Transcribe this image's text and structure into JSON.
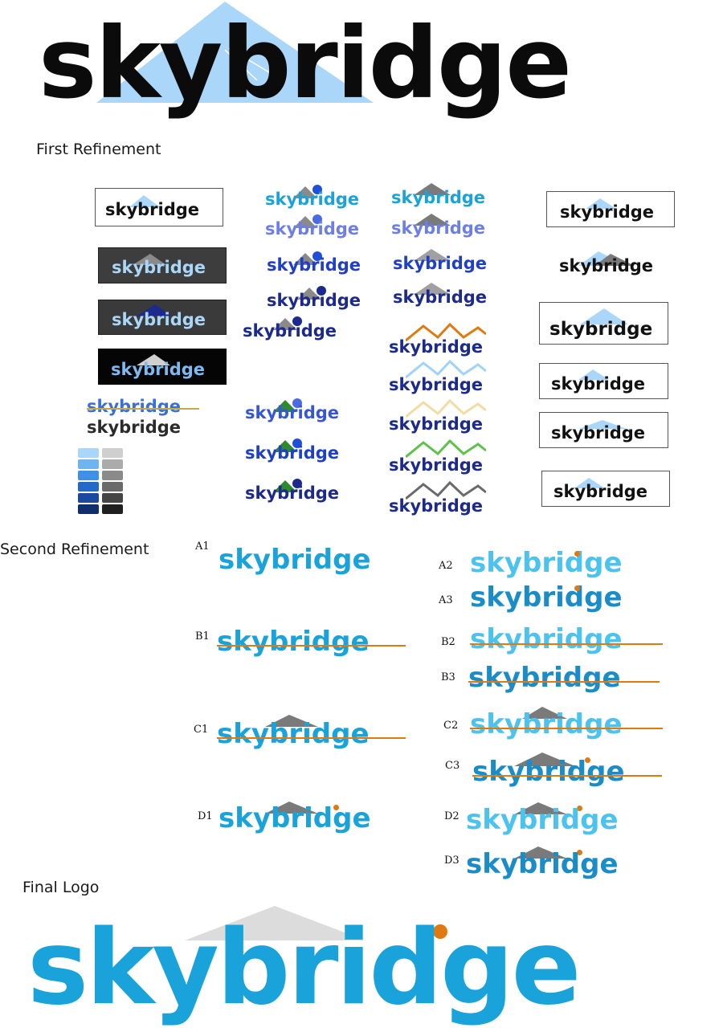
{
  "headings": {
    "first": "First Refinement",
    "second": "Second Refinement",
    "final": "Final Logo"
  },
  "wordmark": "skybridge",
  "variant_labels": {
    "a1": "A1",
    "a2": "A2",
    "a3": "A3",
    "b1": "B1",
    "b2": "B2",
    "b3": "B3",
    "c1": "C1",
    "c2": "C2",
    "c3": "C3",
    "d1": "D1",
    "d2": "D2",
    "d3": "D3"
  },
  "colors": {
    "sky_blue": "#1aa3da",
    "light_blue": "#9fd3f7",
    "royal_blue": "#1f4fd6",
    "navy": "#1b2a8c",
    "orange": "#e07a10",
    "grey": "#7a7a7a",
    "green": "#2f8a2f"
  }
}
